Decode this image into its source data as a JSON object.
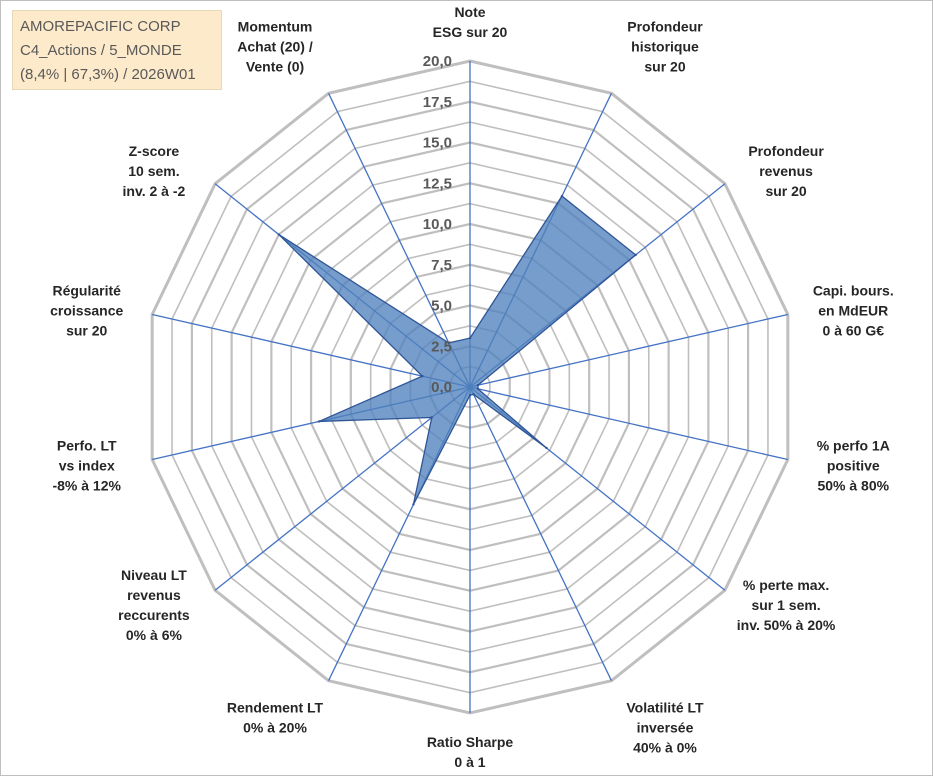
{
  "info_box": {
    "line1": "AMOREPACIFIC CORP",
    "line2": "C4_Actions / 5_MONDE",
    "line3": "(8,4% | 67,3%) / 2026W01"
  },
  "colors": {
    "fill": "#4f81bd",
    "outline": "#2f5597",
    "grid": "#bfbfbf",
    "spoke": "#4472c4"
  },
  "chart_data": {
    "type": "radar",
    "title": "",
    "r_range": [
      0,
      20
    ],
    "r_ticks": [
      "0,0",
      "2,5",
      "5,0",
      "7,5",
      "10,0",
      "12,5",
      "15,0",
      "17,5",
      "20,0"
    ],
    "grid": true,
    "legend": "none",
    "axes": [
      [
        "Note",
        "ESG sur 20"
      ],
      [
        "Profondeur",
        "historique",
        "sur 20"
      ],
      [
        "Profondeur",
        "revenus",
        "sur 20"
      ],
      [
        "Capi. bours.",
        "en MdEUR",
        "0 à 60 G€"
      ],
      [
        "% perfo 1A",
        "positive",
        "50% à 80%"
      ],
      [
        "% perte max.",
        "sur 1 sem.",
        "inv. 50% à 20%"
      ],
      [
        "Volatilité LT",
        "inversée",
        "40% à 0%"
      ],
      [
        "Ratio Sharpe",
        "0 à 1"
      ],
      [
        "Rendement LT",
        "0% à 20%"
      ],
      [
        "Niveau LT",
        "revenus",
        "reccurents",
        "0% à 6%"
      ],
      [
        "Perfo. LT",
        "vs index",
        "-8% à 12%"
      ],
      [
        "Régularité",
        "croissance",
        "sur 20"
      ],
      [
        "Z-score",
        "10 sem.",
        "inv. 2 à -2"
      ],
      [
        "Momentum",
        "Achat (20) /",
        "Vente (0)"
      ]
    ],
    "series": [
      {
        "values": [
          3.0,
          13.0,
          13.0,
          0.5,
          0.5,
          6.0,
          0.5,
          0.5,
          8.0,
          3.0,
          9.5,
          3.0,
          15.0,
          3.0
        ]
      }
    ]
  }
}
